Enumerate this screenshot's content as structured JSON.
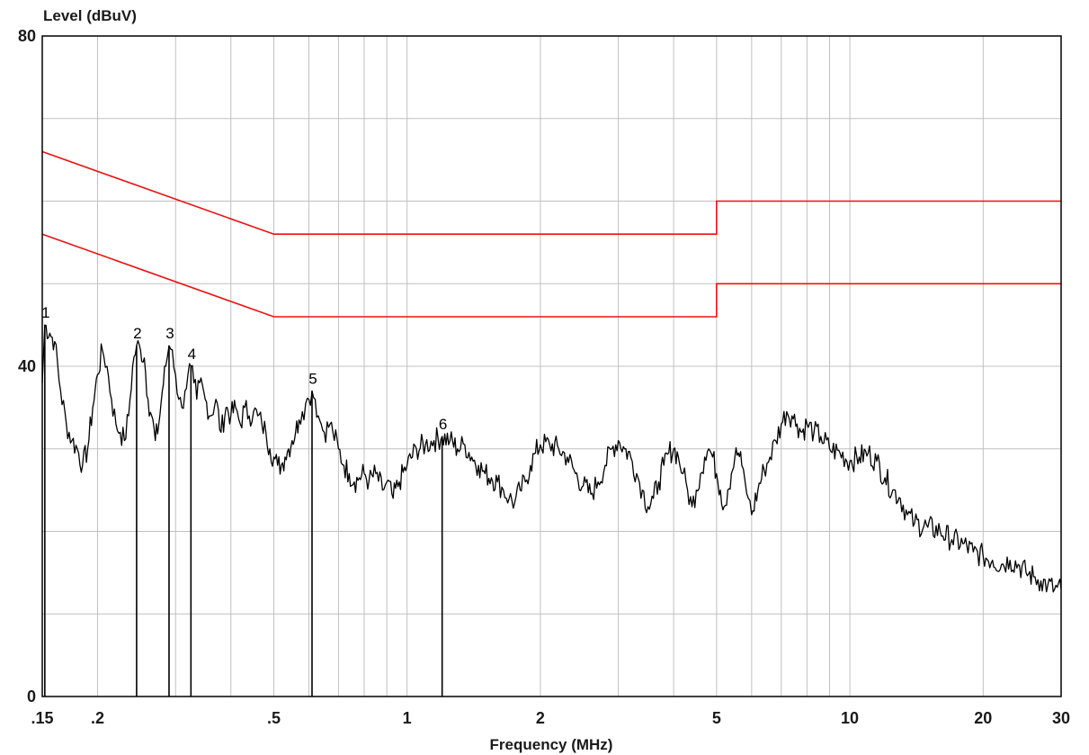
{
  "chart_data": {
    "type": "line",
    "ylabel": "Level (dBuV)",
    "xlabel": "Frequency (MHz)",
    "x_scale": "log",
    "xlim": [
      0.15,
      30
    ],
    "ylim": [
      0,
      80
    ],
    "y_tick_labels": [
      {
        "value": 80,
        "label": "80"
      },
      {
        "value": 40,
        "label": "40"
      },
      {
        "value": 0,
        "label": "0"
      }
    ],
    "y_grid": [
      0,
      10,
      20,
      30,
      40,
      50,
      60,
      70,
      80
    ],
    "x_tick_labels": [
      {
        "value": 0.15,
        "label": ".15"
      },
      {
        "value": 0.2,
        "label": ".2"
      },
      {
        "value": 0.5,
        "label": ".5"
      },
      {
        "value": 1,
        "label": "1"
      },
      {
        "value": 2,
        "label": "2"
      },
      {
        "value": 5,
        "label": "5"
      },
      {
        "value": 10,
        "label": "10"
      },
      {
        "value": 20,
        "label": "20"
      },
      {
        "value": 30,
        "label": "30"
      }
    ],
    "x_grid": [
      0.15,
      0.2,
      0.3,
      0.4,
      0.5,
      0.6,
      0.7,
      0.8,
      0.9,
      1,
      2,
      3,
      4,
      5,
      6,
      7,
      8,
      9,
      10,
      20,
      30
    ],
    "grid": true,
    "limit_lines": [
      {
        "color": "#ee1111",
        "points": [
          [
            0.15,
            66
          ],
          [
            0.5,
            56
          ],
          [
            5,
            56
          ],
          [
            5,
            60
          ],
          [
            30,
            60
          ]
        ]
      },
      {
        "color": "#ee1111",
        "points": [
          [
            0.15,
            56
          ],
          [
            0.5,
            46
          ],
          [
            5,
            46
          ],
          [
            5,
            50
          ],
          [
            30,
            50
          ]
        ]
      }
    ],
    "series": [
      {
        "color": "#000000",
        "points": [
          [
            0.15,
            38
          ],
          [
            0.152,
            45
          ],
          [
            0.156,
            44
          ],
          [
            0.16,
            43
          ],
          [
            0.165,
            37
          ],
          [
            0.17,
            33
          ],
          [
            0.175,
            31
          ],
          [
            0.18,
            30
          ],
          [
            0.185,
            28
          ],
          [
            0.19,
            30
          ],
          [
            0.195,
            35
          ],
          [
            0.2,
            39
          ],
          [
            0.205,
            42
          ],
          [
            0.21,
            40
          ],
          [
            0.215,
            36
          ],
          [
            0.22,
            33
          ],
          [
            0.225,
            32
          ],
          [
            0.23,
            31
          ],
          [
            0.235,
            34
          ],
          [
            0.24,
            40
          ],
          [
            0.245,
            42.5
          ],
          [
            0.25,
            42
          ],
          [
            0.255,
            41
          ],
          [
            0.26,
            36
          ],
          [
            0.265,
            34
          ],
          [
            0.27,
            31
          ],
          [
            0.275,
            33
          ],
          [
            0.28,
            37
          ],
          [
            0.285,
            40
          ],
          [
            0.29,
            42.5
          ],
          [
            0.295,
            42
          ],
          [
            0.3,
            39
          ],
          [
            0.305,
            36
          ],
          [
            0.31,
            35
          ],
          [
            0.315,
            37
          ],
          [
            0.32,
            39
          ],
          [
            0.325,
            40
          ],
          [
            0.33,
            38
          ],
          [
            0.335,
            36
          ],
          [
            0.34,
            38
          ],
          [
            0.35,
            36
          ],
          [
            0.36,
            34
          ],
          [
            0.37,
            36
          ],
          [
            0.38,
            32
          ],
          [
            0.39,
            35
          ],
          [
            0.4,
            34
          ],
          [
            0.41,
            35
          ],
          [
            0.42,
            33
          ],
          [
            0.43,
            35
          ],
          [
            0.44,
            34
          ],
          [
            0.45,
            34.5
          ],
          [
            0.46,
            34
          ],
          [
            0.47,
            33
          ],
          [
            0.48,
            32
          ],
          [
            0.49,
            30
          ],
          [
            0.5,
            29
          ],
          [
            0.51,
            28
          ],
          [
            0.52,
            28
          ],
          [
            0.53,
            29
          ],
          [
            0.54,
            30
          ],
          [
            0.55,
            31
          ],
          [
            0.56,
            32
          ],
          [
            0.57,
            33.5
          ],
          [
            0.58,
            34.5
          ],
          [
            0.59,
            35.5
          ],
          [
            0.6,
            36
          ],
          [
            0.61,
            37
          ],
          [
            0.62,
            36
          ],
          [
            0.63,
            34
          ],
          [
            0.64,
            33
          ],
          [
            0.65,
            32
          ],
          [
            0.67,
            33
          ],
          [
            0.68,
            32
          ],
          [
            0.7,
            30
          ],
          [
            0.72,
            28
          ],
          [
            0.74,
            27
          ],
          [
            0.76,
            26
          ],
          [
            0.78,
            26.5
          ],
          [
            0.8,
            27
          ],
          [
            0.82,
            26
          ],
          [
            0.85,
            27
          ],
          [
            0.88,
            25
          ],
          [
            0.9,
            26
          ],
          [
            0.93,
            24
          ],
          [
            0.96,
            26
          ],
          [
            1,
            28
          ],
          [
            1.05,
            30
          ],
          [
            1.1,
            30.5
          ],
          [
            1.15,
            31
          ],
          [
            1.2,
            31.5
          ],
          [
            1.25,
            31
          ],
          [
            1.3,
            30
          ],
          [
            1.35,
            30.5
          ],
          [
            1.4,
            29
          ],
          [
            1.45,
            28
          ],
          [
            1.5,
            27
          ],
          [
            1.55,
            26.5
          ],
          [
            1.6,
            26
          ],
          [
            1.65,
            25
          ],
          [
            1.7,
            24
          ],
          [
            1.75,
            23.5
          ],
          [
            1.8,
            25
          ],
          [
            1.85,
            26
          ],
          [
            1.9,
            28
          ],
          [
            1.95,
            29.5
          ],
          [
            2,
            30.5
          ],
          [
            2.1,
            30.5
          ],
          [
            2.2,
            30
          ],
          [
            2.3,
            29
          ],
          [
            2.4,
            27
          ],
          [
            2.5,
            25.5
          ],
          [
            2.6,
            24.5
          ],
          [
            2.7,
            26
          ],
          [
            2.8,
            28
          ],
          [
            2.9,
            30
          ],
          [
            3,
            31
          ],
          [
            3.1,
            30
          ],
          [
            3.2,
            29
          ],
          [
            3.3,
            27
          ],
          [
            3.4,
            25
          ],
          [
            3.5,
            23
          ],
          [
            3.6,
            24
          ],
          [
            3.7,
            26
          ],
          [
            3.8,
            28
          ],
          [
            3.9,
            29.5
          ],
          [
            4,
            30
          ],
          [
            4.1,
            29
          ],
          [
            4.2,
            27
          ],
          [
            4.3,
            25
          ],
          [
            4.4,
            23
          ],
          [
            4.5,
            25
          ],
          [
            4.6,
            27
          ],
          [
            4.7,
            29
          ],
          [
            4.8,
            30
          ],
          [
            4.9,
            29
          ],
          [
            5,
            27
          ],
          [
            5.1,
            25
          ],
          [
            5.2,
            23
          ],
          [
            5.3,
            25
          ],
          [
            5.4,
            27
          ],
          [
            5.5,
            29
          ],
          [
            5.6,
            29.5
          ],
          [
            5.7,
            28
          ],
          [
            5.8,
            26
          ],
          [
            5.9,
            24
          ],
          [
            6,
            22
          ],
          [
            6.2,
            25
          ],
          [
            6.4,
            27.5
          ],
          [
            6.6,
            29
          ],
          [
            6.8,
            31
          ],
          [
            7,
            33
          ],
          [
            7.2,
            34.5
          ],
          [
            7.4,
            34
          ],
          [
            7.6,
            33
          ],
          [
            7.8,
            32
          ],
          [
            8,
            33
          ],
          [
            8.3,
            32
          ],
          [
            8.6,
            31.5
          ],
          [
            9,
            30
          ],
          [
            9.5,
            29.5
          ],
          [
            10,
            28.5
          ],
          [
            10.5,
            29
          ],
          [
            11,
            29.5
          ],
          [
            11.5,
            28.5
          ],
          [
            12,
            26.5
          ],
          [
            12.5,
            25
          ],
          [
            13,
            24
          ],
          [
            13.5,
            22
          ],
          [
            14,
            21
          ],
          [
            15,
            20.5
          ],
          [
            16,
            20
          ],
          [
            17,
            19
          ],
          [
            18,
            18.5
          ],
          [
            19,
            17.5
          ],
          [
            20,
            17
          ],
          [
            21,
            16.5
          ],
          [
            22,
            16
          ],
          [
            23,
            16.5
          ],
          [
            24,
            16
          ],
          [
            25,
            15
          ],
          [
            26,
            14.5
          ],
          [
            27,
            14
          ],
          [
            28,
            13.5
          ],
          [
            29,
            13
          ],
          [
            30,
            13
          ]
        ]
      }
    ],
    "markers": [
      {
        "label": "1",
        "x": 0.152,
        "y": 45
      },
      {
        "label": "2",
        "x": 0.245,
        "y": 42.5
      },
      {
        "label": "3",
        "x": 0.29,
        "y": 42.5
      },
      {
        "label": "4",
        "x": 0.325,
        "y": 40
      },
      {
        "label": "5",
        "x": 0.61,
        "y": 37
      },
      {
        "label": "6",
        "x": 1.2,
        "y": 31.5
      }
    ]
  }
}
